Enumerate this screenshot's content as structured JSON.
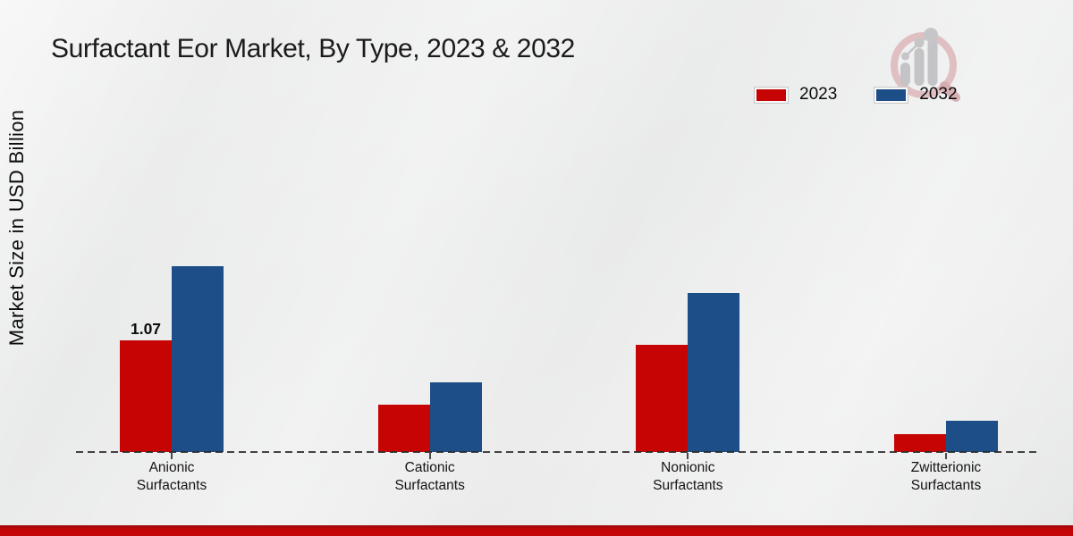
{
  "page": {
    "title": "Surfactant Eor Market, By Type, 2023 & 2032"
  },
  "colors": {
    "series_2023_red": "#c70404",
    "series_2032_blue": "#1d4e87",
    "footer_band_red": "#c30505",
    "background_gray": "#ebecec"
  },
  "logo": {
    "name": "magnifier-growth-bars-logo"
  },
  "chart_data": {
    "type": "bar",
    "title": "Surfactant Eor Market, By Type, 2023 & 2032",
    "xlabel": "",
    "ylabel": "Market Size in USD Billion",
    "categories": [
      "Anionic Surfactants",
      "Cationic Surfactants",
      "Nonionic Surfactants",
      "Zwitterionic Surfactants"
    ],
    "category_lines": [
      [
        "Anionic",
        "Surfactants"
      ],
      [
        "Cationic",
        "Surfactants"
      ],
      [
        "Nonionic",
        "Surfactants"
      ],
      [
        "Zwitterionic",
        "Surfactants"
      ]
    ],
    "series": [
      {
        "name": "2023",
        "color": "#c70404",
        "values": [
          1.07,
          0.45,
          1.03,
          0.17
        ],
        "labels": [
          "1.07",
          null,
          null,
          null
        ]
      },
      {
        "name": "2032",
        "color": "#1d4e87",
        "values": [
          1.78,
          0.67,
          1.52,
          0.3
        ],
        "labels": [
          null,
          null,
          null,
          null
        ]
      }
    ],
    "ylim": [
      0,
      2
    ],
    "grid": false,
    "baseline_style": "dashed",
    "legend_position": "top-right",
    "y_axis_ticks_visible": false
  }
}
